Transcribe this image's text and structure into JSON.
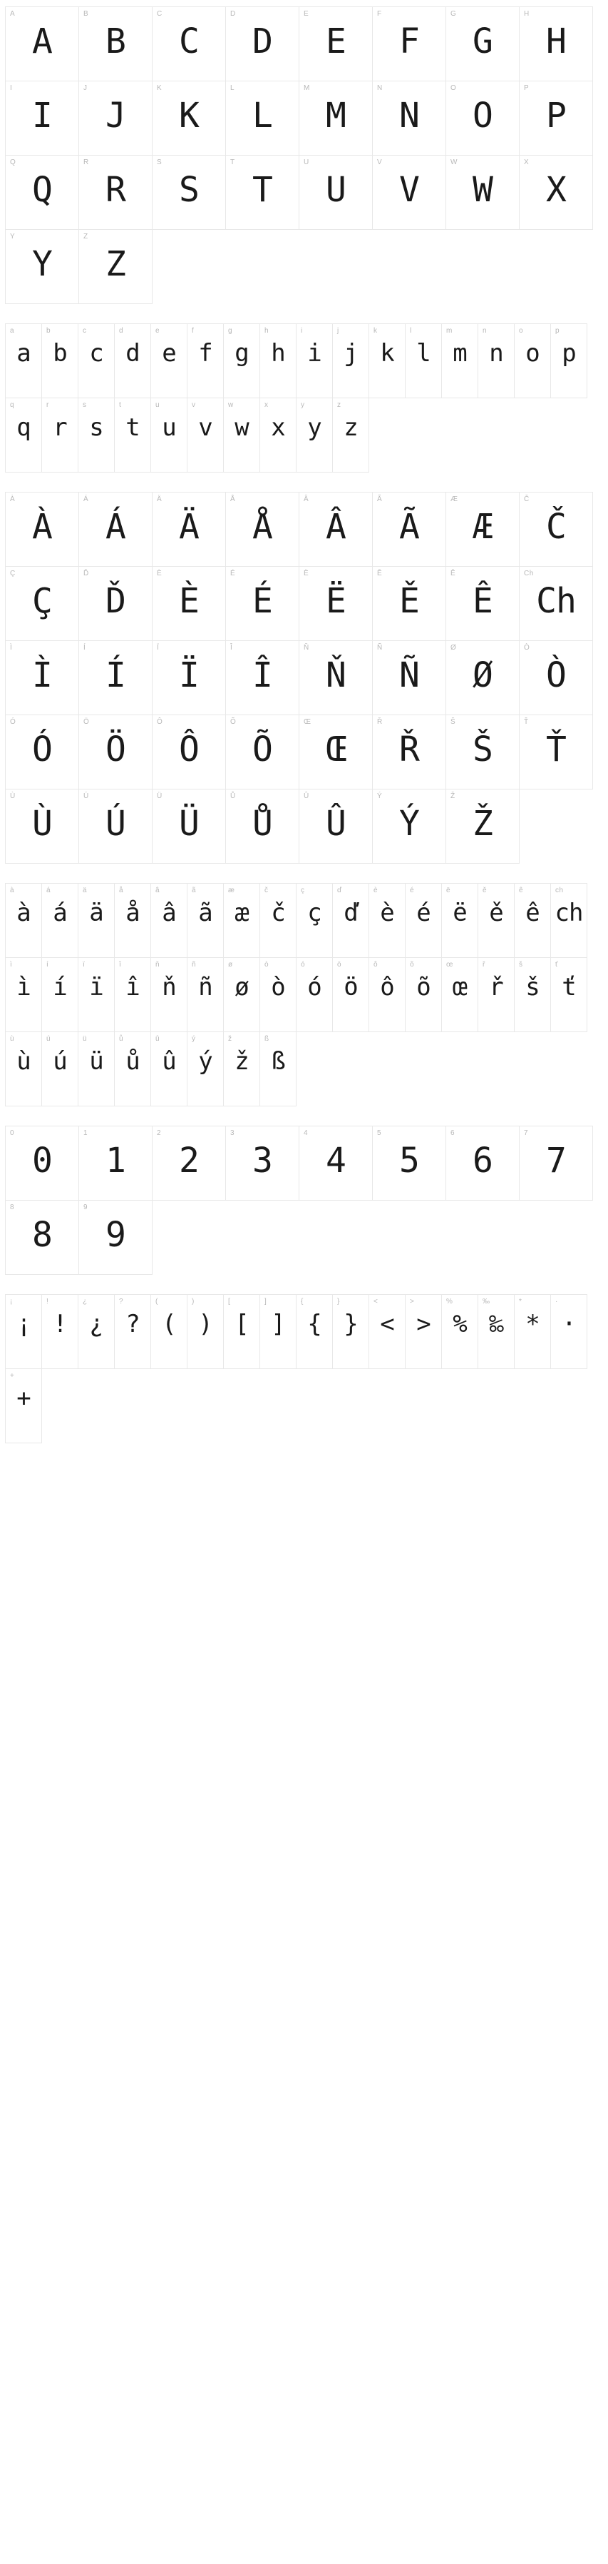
{
  "colors": {
    "border": "#e8e8e8",
    "labelText": "#b8b8b8",
    "glyphText": "#1a1a1a",
    "background": "#ffffff"
  },
  "typography": {
    "labelFontSize": 10,
    "glyphFontFamily": "monospace",
    "glyphWeight": 300
  },
  "groups": [
    {
      "id": "upper",
      "cellSize": "md",
      "glyphSize": "lg",
      "cells": [
        {
          "label": "A",
          "glyph": "A"
        },
        {
          "label": "B",
          "glyph": "B"
        },
        {
          "label": "C",
          "glyph": "C"
        },
        {
          "label": "D",
          "glyph": "D"
        },
        {
          "label": "E",
          "glyph": "E"
        },
        {
          "label": "F",
          "glyph": "F"
        },
        {
          "label": "G",
          "glyph": "G"
        },
        {
          "label": "H",
          "glyph": "H"
        },
        {
          "label": "I",
          "glyph": "I"
        },
        {
          "label": "J",
          "glyph": "J"
        },
        {
          "label": "K",
          "glyph": "K"
        },
        {
          "label": "L",
          "glyph": "L"
        },
        {
          "label": "M",
          "glyph": "M"
        },
        {
          "label": "N",
          "glyph": "N"
        },
        {
          "label": "O",
          "glyph": "O"
        },
        {
          "label": "P",
          "glyph": "P"
        },
        {
          "label": "Q",
          "glyph": "Q"
        },
        {
          "label": "R",
          "glyph": "R"
        },
        {
          "label": "S",
          "glyph": "S"
        },
        {
          "label": "T",
          "glyph": "T"
        },
        {
          "label": "U",
          "glyph": "U"
        },
        {
          "label": "V",
          "glyph": "V"
        },
        {
          "label": "W",
          "glyph": "W"
        },
        {
          "label": "X",
          "glyph": "X"
        },
        {
          "label": "Y",
          "glyph": "Y"
        },
        {
          "label": "Z",
          "glyph": "Z"
        }
      ]
    },
    {
      "id": "lower",
      "cellSize": "sm",
      "glyphSize": "sm",
      "cells": [
        {
          "label": "a",
          "glyph": "a"
        },
        {
          "label": "b",
          "glyph": "b"
        },
        {
          "label": "c",
          "glyph": "c"
        },
        {
          "label": "d",
          "glyph": "d"
        },
        {
          "label": "e",
          "glyph": "e"
        },
        {
          "label": "f",
          "glyph": "f"
        },
        {
          "label": "g",
          "glyph": "g"
        },
        {
          "label": "h",
          "glyph": "h"
        },
        {
          "label": "i",
          "glyph": "i"
        },
        {
          "label": "j",
          "glyph": "j"
        },
        {
          "label": "k",
          "glyph": "k"
        },
        {
          "label": "l",
          "glyph": "l"
        },
        {
          "label": "m",
          "glyph": "m"
        },
        {
          "label": "n",
          "glyph": "n"
        },
        {
          "label": "o",
          "glyph": "o"
        },
        {
          "label": "p",
          "glyph": "p"
        },
        {
          "label": "q",
          "glyph": "q"
        },
        {
          "label": "r",
          "glyph": "r"
        },
        {
          "label": "s",
          "glyph": "s"
        },
        {
          "label": "t",
          "glyph": "t"
        },
        {
          "label": "u",
          "glyph": "u"
        },
        {
          "label": "v",
          "glyph": "v"
        },
        {
          "label": "w",
          "glyph": "w"
        },
        {
          "label": "x",
          "glyph": "x"
        },
        {
          "label": "y",
          "glyph": "y"
        },
        {
          "label": "z",
          "glyph": "z"
        }
      ]
    },
    {
      "id": "upper-accents",
      "cellSize": "md",
      "glyphSize": "lg",
      "cells": [
        {
          "label": "À",
          "glyph": "À"
        },
        {
          "label": "Á",
          "glyph": "Á"
        },
        {
          "label": "Ä",
          "glyph": "Ä"
        },
        {
          "label": "Å",
          "glyph": "Å"
        },
        {
          "label": "Â",
          "glyph": "Â"
        },
        {
          "label": "Ã",
          "glyph": "Ã"
        },
        {
          "label": "Æ",
          "glyph": "Æ"
        },
        {
          "label": "Č",
          "glyph": "Č"
        },
        {
          "label": "Ç",
          "glyph": "Ç"
        },
        {
          "label": "Ď",
          "glyph": "Ď"
        },
        {
          "label": "È",
          "glyph": "È"
        },
        {
          "label": "É",
          "glyph": "É"
        },
        {
          "label": "Ë",
          "glyph": "Ë"
        },
        {
          "label": "Ě",
          "glyph": "Ě"
        },
        {
          "label": "Ê",
          "glyph": "Ê"
        },
        {
          "label": "Ch",
          "glyph": "Ch"
        },
        {
          "label": "Ì",
          "glyph": "Ì"
        },
        {
          "label": "Í",
          "glyph": "Í"
        },
        {
          "label": "Ï",
          "glyph": "Ï"
        },
        {
          "label": "Î",
          "glyph": "Î"
        },
        {
          "label": "Ň",
          "glyph": "Ň"
        },
        {
          "label": "Ñ",
          "glyph": "Ñ"
        },
        {
          "label": "Ø",
          "glyph": "Ø"
        },
        {
          "label": "Ò",
          "glyph": "Ò"
        },
        {
          "label": "Ó",
          "glyph": "Ó"
        },
        {
          "label": "Ö",
          "glyph": "Ö"
        },
        {
          "label": "Ô",
          "glyph": "Ô"
        },
        {
          "label": "Õ",
          "glyph": "Õ"
        },
        {
          "label": "Œ",
          "glyph": "Œ"
        },
        {
          "label": "Ř",
          "glyph": "Ř"
        },
        {
          "label": "Š",
          "glyph": "Š"
        },
        {
          "label": "Ť",
          "glyph": "Ť"
        },
        {
          "label": "Ù",
          "glyph": "Ù"
        },
        {
          "label": "Ú",
          "glyph": "Ú"
        },
        {
          "label": "Ü",
          "glyph": "Ü"
        },
        {
          "label": "Ů",
          "glyph": "Ů"
        },
        {
          "label": "Û",
          "glyph": "Û"
        },
        {
          "label": "Ý",
          "glyph": "Ý"
        },
        {
          "label": "Ž",
          "glyph": "Ž"
        }
      ]
    },
    {
      "id": "lower-accents",
      "cellSize": "sm",
      "glyphSize": "sm",
      "cells": [
        {
          "label": "à",
          "glyph": "à"
        },
        {
          "label": "á",
          "glyph": "á"
        },
        {
          "label": "ä",
          "glyph": "ä"
        },
        {
          "label": "å",
          "glyph": "å"
        },
        {
          "label": "â",
          "glyph": "â"
        },
        {
          "label": "ã",
          "glyph": "ã"
        },
        {
          "label": "æ",
          "glyph": "æ"
        },
        {
          "label": "č",
          "glyph": "č"
        },
        {
          "label": "ç",
          "glyph": "ç"
        },
        {
          "label": "ď",
          "glyph": "ď"
        },
        {
          "label": "è",
          "glyph": "è"
        },
        {
          "label": "é",
          "glyph": "é"
        },
        {
          "label": "ë",
          "glyph": "ë"
        },
        {
          "label": "ě",
          "glyph": "ě"
        },
        {
          "label": "ê",
          "glyph": "ê"
        },
        {
          "label": "ch",
          "glyph": "ch"
        },
        {
          "label": "ì",
          "glyph": "ì"
        },
        {
          "label": "í",
          "glyph": "í"
        },
        {
          "label": "ï",
          "glyph": "ï"
        },
        {
          "label": "î",
          "glyph": "î"
        },
        {
          "label": "ň",
          "glyph": "ň"
        },
        {
          "label": "ñ",
          "glyph": "ñ"
        },
        {
          "label": "ø",
          "glyph": "ø"
        },
        {
          "label": "ò",
          "glyph": "ò"
        },
        {
          "label": "ó",
          "glyph": "ó"
        },
        {
          "label": "ö",
          "glyph": "ö"
        },
        {
          "label": "ô",
          "glyph": "ô"
        },
        {
          "label": "õ",
          "glyph": "õ"
        },
        {
          "label": "œ",
          "glyph": "œ"
        },
        {
          "label": "ř",
          "glyph": "ř"
        },
        {
          "label": "š",
          "glyph": "š"
        },
        {
          "label": "ť",
          "glyph": "ť"
        },
        {
          "label": "ù",
          "glyph": "ù"
        },
        {
          "label": "ú",
          "glyph": "ú"
        },
        {
          "label": "ü",
          "glyph": "ü"
        },
        {
          "label": "ů",
          "glyph": "ů"
        },
        {
          "label": "û",
          "glyph": "û"
        },
        {
          "label": "ý",
          "glyph": "ý"
        },
        {
          "label": "ž",
          "glyph": "ž"
        },
        {
          "label": "ß",
          "glyph": "ß"
        }
      ]
    },
    {
      "id": "digits",
      "cellSize": "md",
      "glyphSize": "lg",
      "cells": [
        {
          "label": "0",
          "glyph": "0"
        },
        {
          "label": "1",
          "glyph": "1"
        },
        {
          "label": "2",
          "glyph": "2"
        },
        {
          "label": "3",
          "glyph": "3"
        },
        {
          "label": "4",
          "glyph": "4"
        },
        {
          "label": "5",
          "glyph": "5"
        },
        {
          "label": "6",
          "glyph": "6"
        },
        {
          "label": "7",
          "glyph": "7"
        },
        {
          "label": "8",
          "glyph": "8"
        },
        {
          "label": "9",
          "glyph": "9"
        }
      ]
    },
    {
      "id": "punct",
      "cellSize": "sm",
      "glyphSize": "sm",
      "cells": [
        {
          "label": "¡",
          "glyph": "¡"
        },
        {
          "label": "!",
          "glyph": "!"
        },
        {
          "label": "¿",
          "glyph": "¿"
        },
        {
          "label": "?",
          "glyph": "?"
        },
        {
          "label": "(",
          "glyph": "("
        },
        {
          "label": ")",
          "glyph": ")"
        },
        {
          "label": "[",
          "glyph": "["
        },
        {
          "label": "]",
          "glyph": "]"
        },
        {
          "label": "{",
          "glyph": "{"
        },
        {
          "label": "}",
          "glyph": "}"
        },
        {
          "label": "<",
          "glyph": "<"
        },
        {
          "label": ">",
          "glyph": ">"
        },
        {
          "label": "%",
          "glyph": "%"
        },
        {
          "label": "‰",
          "glyph": "‰"
        },
        {
          "label": "*",
          "glyph": "*"
        },
        {
          "label": "·",
          "glyph": "·"
        },
        {
          "label": "+",
          "glyph": "+"
        }
      ]
    }
  ]
}
